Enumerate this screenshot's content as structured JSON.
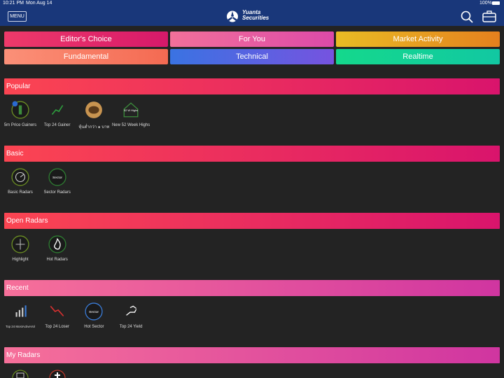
{
  "status_bar": {
    "time": "10:21 PM",
    "date": "Mon Aug 14",
    "battery": "100%"
  },
  "header": {
    "menu": "MENU",
    "logo_line1": "Yuanta",
    "logo_line2": "Securities"
  },
  "tabs": [
    "Editor's Choice",
    "For You",
    "Market Activity",
    "Fundamental",
    "Technical",
    "Realtime"
  ],
  "sections": [
    {
      "title": "Popular",
      "items": [
        {
          "label": "5m Price Gainers",
          "icon_text": "5m"
        },
        {
          "label": "Top 24 Gainer"
        },
        {
          "label": "หุ้นต่ำกว่า ๑ บาท"
        },
        {
          "label": "New 52 Week Highs",
          "icon_text": "52 W Highs"
        }
      ]
    },
    {
      "title": "Basic",
      "items": [
        {
          "label": "Basic Radars"
        },
        {
          "label": "Sector Radars",
          "icon_text": "Sector"
        }
      ]
    },
    {
      "title": "Open Radars",
      "items": [
        {
          "label": "Highlight"
        },
        {
          "label": "Hot Radars"
        }
      ]
    },
    {
      "title": "Recent",
      "items": [
        {
          "label": "Top 24 MostActiveVol"
        },
        {
          "label": "Top 24 Loser"
        },
        {
          "label": "Hot Sector",
          "icon_text": "Sector"
        },
        {
          "label": "Top 24 Yield"
        }
      ]
    },
    {
      "title": "My Radars"
    }
  ]
}
